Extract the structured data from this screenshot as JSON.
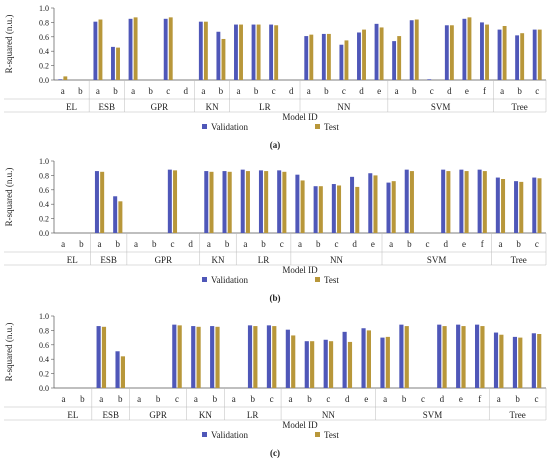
{
  "chart_data": [
    {
      "type": "bar",
      "panel_label": "(a)",
      "ylabel": "R-squared (n.u.)",
      "xlabel": "Model ID",
      "ylim": [
        0,
        1.0
      ],
      "yticks": [
        "0.0",
        "0.2",
        "0.4",
        "0.6",
        "0.8",
        "1.0"
      ],
      "grid": false,
      "legend": "bottom-center",
      "groups": [
        {
          "name": "EL",
          "ids": [
            "a",
            "b"
          ]
        },
        {
          "name": "ESB",
          "ids": [
            "a",
            "b"
          ]
        },
        {
          "name": "GPR",
          "ids": [
            "a",
            "b",
            "c",
            "d"
          ]
        },
        {
          "name": "KN",
          "ids": [
            "a",
            "b"
          ]
        },
        {
          "name": "LR",
          "ids": [
            "a",
            "b",
            "c",
            "d"
          ]
        },
        {
          "name": "NN",
          "ids": [
            "a",
            "b",
            "c",
            "d",
            "e"
          ]
        },
        {
          "name": "SVM",
          "ids": [
            "a",
            "b",
            "c",
            "d",
            "e",
            "f"
          ]
        },
        {
          "name": "Tree",
          "ids": [
            "a",
            "b",
            "c"
          ]
        }
      ],
      "series": [
        {
          "name": "Validation",
          "color": "#4f57b8",
          "values": [
            0.01,
            0.0,
            0.81,
            0.46,
            0.85,
            0.0,
            0.85,
            0.0,
            0.81,
            0.67,
            0.77,
            0.77,
            0.77,
            0.0,
            0.61,
            0.64,
            0.49,
            0.66,
            0.78,
            0.54,
            0.83,
            0.01,
            0.76,
            0.85,
            0.8,
            0.7,
            0.62,
            0.7
          ]
        },
        {
          "name": "Test",
          "color": "#b8973a",
          "values": [
            0.05,
            0.0,
            0.84,
            0.45,
            0.87,
            0.0,
            0.87,
            0.0,
            0.81,
            0.57,
            0.77,
            0.77,
            0.76,
            0.0,
            0.63,
            0.64,
            0.55,
            0.7,
            0.73,
            0.61,
            0.84,
            0.0,
            0.76,
            0.87,
            0.77,
            0.75,
            0.65,
            0.7
          ]
        }
      ]
    },
    {
      "type": "bar",
      "panel_label": "(b)",
      "ylabel": "R-squared (n.u.)",
      "xlabel": "Model ID",
      "ylim": [
        0,
        1.0
      ],
      "yticks": [
        "0.0",
        "0.2",
        "0.4",
        "0.6",
        "0.8",
        "1.0"
      ],
      "grid": false,
      "legend": "bottom-center",
      "groups": [
        {
          "name": "EL",
          "ids": [
            "a",
            "b"
          ]
        },
        {
          "name": "ESB",
          "ids": [
            "a",
            "b"
          ]
        },
        {
          "name": "GPR",
          "ids": [
            "a",
            "b",
            "c",
            "d"
          ]
        },
        {
          "name": "KN",
          "ids": [
            "a",
            "b"
          ]
        },
        {
          "name": "LR",
          "ids": [
            "a",
            "b",
            "c"
          ]
        },
        {
          "name": "NN",
          "ids": [
            "a",
            "b",
            "c",
            "d",
            "e"
          ]
        },
        {
          "name": "SVM",
          "ids": [
            "a",
            "b",
            "c",
            "d",
            "e",
            "f"
          ]
        },
        {
          "name": "Tree",
          "ids": [
            "a",
            "b",
            "c"
          ]
        }
      ],
      "series": [
        {
          "name": "Validation",
          "color": "#4f57b8",
          "values": [
            0.0,
            0.0,
            0.86,
            0.51,
            0.0,
            0.0,
            0.88,
            0.0,
            0.86,
            0.86,
            0.88,
            0.87,
            0.87,
            0.81,
            0.65,
            0.68,
            0.78,
            0.83,
            0.7,
            0.88,
            0.0,
            0.88,
            0.88,
            0.88,
            0.77,
            0.72,
            0.77
          ]
        },
        {
          "name": "Test",
          "color": "#b8973a",
          "values": [
            0.0,
            0.0,
            0.85,
            0.44,
            0.0,
            0.0,
            0.87,
            0.0,
            0.85,
            0.85,
            0.86,
            0.86,
            0.85,
            0.73,
            0.65,
            0.66,
            0.64,
            0.8,
            0.72,
            0.86,
            0.0,
            0.86,
            0.86,
            0.86,
            0.75,
            0.71,
            0.76
          ]
        }
      ]
    },
    {
      "type": "bar",
      "panel_label": "(c)",
      "ylabel": "R-squared (n.u.)",
      "xlabel": "Model ID",
      "ylim": [
        0,
        1.0
      ],
      "yticks": [
        "0.0",
        "0.2",
        "0.4",
        "0.6",
        "0.8",
        "1.0"
      ],
      "grid": false,
      "legend": "bottom-center",
      "groups": [
        {
          "name": "EL",
          "ids": [
            "a",
            "b"
          ]
        },
        {
          "name": "ESB",
          "ids": [
            "a",
            "b"
          ]
        },
        {
          "name": "GPR",
          "ids": [
            "a",
            "b",
            "c"
          ]
        },
        {
          "name": "KN",
          "ids": [
            "a",
            "b"
          ]
        },
        {
          "name": "LR",
          "ids": [
            "a",
            "b",
            "c"
          ]
        },
        {
          "name": "NN",
          "ids": [
            "a",
            "b",
            "c",
            "d",
            "e"
          ]
        },
        {
          "name": "SVM",
          "ids": [
            "a",
            "b",
            "c",
            "d",
            "e",
            "f"
          ]
        },
        {
          "name": "Tree",
          "ids": [
            "a",
            "b",
            "c"
          ]
        }
      ],
      "series": [
        {
          "name": "Validation",
          "color": "#4f57b8",
          "values": [
            0.0,
            0.0,
            0.86,
            0.51,
            0.0,
            0.0,
            0.88,
            0.86,
            0.86,
            0.0,
            0.87,
            0.87,
            0.81,
            0.65,
            0.67,
            0.78,
            0.83,
            0.7,
            0.88,
            0.0,
            0.88,
            0.88,
            0.88,
            0.77,
            0.71,
            0.76
          ]
        },
        {
          "name": "Test",
          "color": "#b8973a",
          "values": [
            0.0,
            0.0,
            0.85,
            0.44,
            0.0,
            0.0,
            0.87,
            0.85,
            0.85,
            0.0,
            0.86,
            0.86,
            0.73,
            0.65,
            0.65,
            0.64,
            0.8,
            0.71,
            0.86,
            0.0,
            0.86,
            0.86,
            0.86,
            0.74,
            0.7,
            0.75
          ]
        }
      ]
    }
  ]
}
